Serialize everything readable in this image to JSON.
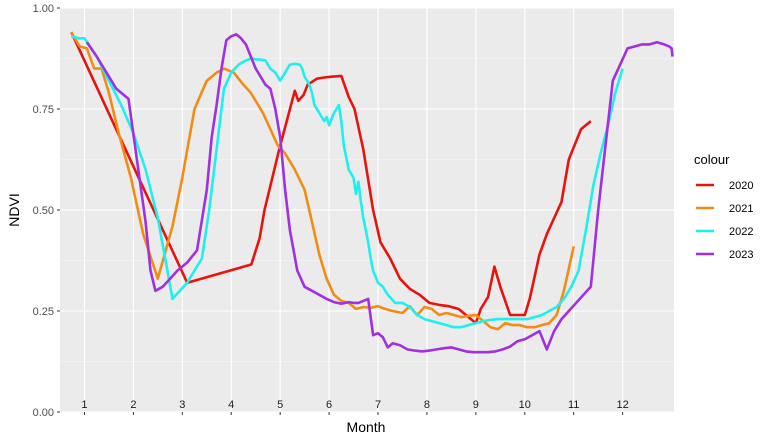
{
  "chart_data": {
    "type": "line",
    "xlabel": "Month",
    "ylabel": "NDVI",
    "xlim": [
      0,
      12.55
    ],
    "ylim": [
      0,
      1
    ],
    "grid": true,
    "legend_title": "colour",
    "legend_position": "right",
    "y_ticks": [
      0,
      0.25,
      0.5,
      0.75,
      1
    ],
    "y_tick_labels": [
      "0.00",
      "0.25",
      "0.50",
      "0.75",
      "1.00"
    ],
    "x_ticks": [
      0.5,
      1.5,
      2.5,
      3.5,
      4.5,
      5.5,
      6.5,
      7.5,
      8.5,
      9.5,
      10.5,
      11.5
    ],
    "month_labels": [
      {
        "x": 0.5,
        "label": "1"
      },
      {
        "x": 1.5,
        "label": "2"
      },
      {
        "x": 2.5,
        "label": "3"
      },
      {
        "x": 3.5,
        "label": "4"
      },
      {
        "x": 4.5,
        "label": "5"
      },
      {
        "x": 5.5,
        "label": "6"
      },
      {
        "x": 6.5,
        "label": "7"
      },
      {
        "x": 7.5,
        "label": "8"
      },
      {
        "x": 8.5,
        "label": "9"
      },
      {
        "x": 9.5,
        "label": "10"
      },
      {
        "x": 10.5,
        "label": "11"
      },
      {
        "x": 11.5,
        "label": "12"
      }
    ],
    "series": [
      {
        "name": "2020",
        "color": "#e8130e",
        "x": [
          0.23,
          2.6,
          3.91,
          4.08,
          4.18,
          4.48,
          4.8,
          4.87,
          4.98,
          5.06,
          5.25,
          5.4,
          5.55,
          5.75,
          5.9,
          6.02,
          6.2,
          6.4,
          6.55,
          6.75,
          6.95,
          7.15,
          7.35,
          7.55,
          7.75,
          7.95,
          8.15,
          8.35,
          8.5,
          8.6,
          8.75,
          8.88,
          9.0,
          9.2,
          9.35,
          9.5,
          9.6,
          9.7,
          9.8,
          9.95,
          10.1,
          10.25,
          10.4,
          10.65,
          10.85
        ],
        "y": [
          0.94,
          0.32,
          0.365,
          0.43,
          0.5,
          0.65,
          0.795,
          0.77,
          0.785,
          0.81,
          0.825,
          0.828,
          0.83,
          0.832,
          0.78,
          0.75,
          0.65,
          0.5,
          0.42,
          0.38,
          0.33,
          0.305,
          0.29,
          0.27,
          0.265,
          0.262,
          0.255,
          0.235,
          0.22,
          0.255,
          0.285,
          0.36,
          0.31,
          0.24,
          0.24,
          0.24,
          0.28,
          0.335,
          0.39,
          0.44,
          0.48,
          0.52,
          0.625,
          0.7,
          0.72
        ]
      },
      {
        "name": "2021",
        "color": "#f28c14",
        "x": [
          0.23,
          0.4,
          0.55,
          0.7,
          0.85,
          1.0,
          1.2,
          1.45,
          1.7,
          2.0,
          2.3,
          2.5,
          2.75,
          3.0,
          3.2,
          3.35,
          3.55,
          3.75,
          3.9,
          4.0,
          4.15,
          4.3,
          4.45,
          4.6,
          4.8,
          5.0,
          5.15,
          5.3,
          5.45,
          5.6,
          5.75,
          5.9,
          6.05,
          6.2,
          6.35,
          6.5,
          6.65,
          6.8,
          7.0,
          7.15,
          7.3,
          7.45,
          7.6,
          7.75,
          7.9,
          8.05,
          8.2,
          8.35,
          8.5,
          8.65,
          8.8,
          8.95,
          9.1,
          9.25,
          9.4,
          9.55,
          9.7,
          9.85,
          10.0,
          10.15,
          10.3,
          10.5
        ],
        "y": [
          0.94,
          0.905,
          0.9,
          0.85,
          0.85,
          0.79,
          0.69,
          0.58,
          0.44,
          0.33,
          0.46,
          0.58,
          0.75,
          0.82,
          0.84,
          0.85,
          0.84,
          0.81,
          0.79,
          0.77,
          0.74,
          0.7,
          0.66,
          0.64,
          0.6,
          0.55,
          0.47,
          0.39,
          0.33,
          0.29,
          0.275,
          0.27,
          0.255,
          0.26,
          0.258,
          0.262,
          0.255,
          0.25,
          0.245,
          0.262,
          0.24,
          0.26,
          0.255,
          0.24,
          0.245,
          0.24,
          0.235,
          0.238,
          0.24,
          0.225,
          0.21,
          0.205,
          0.22,
          0.215,
          0.215,
          0.21,
          0.21,
          0.215,
          0.22,
          0.24,
          0.3,
          0.41
        ]
      },
      {
        "name": "2022",
        "color": "#1ef0f0",
        "x": [
          0.23,
          0.38,
          0.5,
          0.75,
          1.0,
          1.25,
          1.5,
          1.75,
          2.0,
          2.15,
          2.3,
          2.45,
          2.6,
          2.75,
          2.9,
          3.05,
          3.2,
          3.35,
          3.5,
          3.65,
          3.8,
          3.9,
          4.0,
          4.1,
          4.2,
          4.25,
          4.3,
          4.4,
          4.5,
          4.6,
          4.7,
          4.8,
          4.9,
          4.95,
          5.0,
          5.05,
          5.1,
          5.15,
          5.2,
          5.25,
          5.3,
          5.4,
          5.45,
          5.5,
          5.6,
          5.7,
          5.75,
          5.8,
          5.9,
          6.0,
          6.05,
          6.1,
          6.15,
          6.2,
          6.25,
          6.3,
          6.35,
          6.4,
          6.5,
          6.6,
          6.7,
          6.85,
          7.0,
          7.15,
          7.3,
          7.45,
          7.6,
          7.75,
          7.9,
          8.05,
          8.2,
          8.35,
          8.5,
          8.65,
          8.8,
          8.95,
          9.1,
          9.25,
          9.4,
          9.55,
          9.7,
          9.85,
          10.0,
          10.15,
          10.3,
          10.45,
          10.6,
          10.75,
          10.9,
          11.05,
          11.2,
          11.35,
          11.5
        ],
        "y": [
          0.93,
          0.925,
          0.925,
          0.88,
          0.82,
          0.76,
          0.69,
          0.6,
          0.48,
          0.38,
          0.28,
          0.3,
          0.32,
          0.35,
          0.38,
          0.5,
          0.65,
          0.8,
          0.84,
          0.86,
          0.87,
          0.875,
          0.873,
          0.872,
          0.87,
          0.86,
          0.85,
          0.84,
          0.82,
          0.84,
          0.86,
          0.862,
          0.86,
          0.85,
          0.83,
          0.82,
          0.81,
          0.79,
          0.76,
          0.75,
          0.74,
          0.72,
          0.73,
          0.71,
          0.74,
          0.76,
          0.72,
          0.66,
          0.6,
          0.58,
          0.54,
          0.57,
          0.52,
          0.48,
          0.45,
          0.42,
          0.38,
          0.35,
          0.32,
          0.31,
          0.29,
          0.27,
          0.27,
          0.26,
          0.24,
          0.23,
          0.225,
          0.22,
          0.215,
          0.21,
          0.21,
          0.215,
          0.22,
          0.225,
          0.228,
          0.23,
          0.23,
          0.23,
          0.23,
          0.23,
          0.235,
          0.24,
          0.25,
          0.26,
          0.28,
          0.31,
          0.35,
          0.45,
          0.56,
          0.64,
          0.71,
          0.79,
          0.85
        ]
      },
      {
        "name": "2023",
        "color": "#a030e0",
        "x": [
          0.55,
          0.75,
          0.95,
          1.15,
          1.4,
          1.6,
          1.75,
          1.85,
          1.95,
          2.1,
          2.25,
          2.4,
          2.6,
          2.8,
          3.0,
          3.1,
          3.2,
          3.3,
          3.4,
          3.5,
          3.6,
          3.7,
          3.8,
          3.9,
          4.0,
          4.1,
          4.2,
          4.3,
          4.4,
          4.5,
          4.6,
          4.7,
          4.85,
          5.0,
          5.15,
          5.3,
          5.45,
          5.6,
          5.75,
          5.9,
          6.0,
          6.1,
          6.2,
          6.3,
          6.4,
          6.5,
          6.6,
          6.7,
          6.8,
          6.95,
          7.1,
          7.25,
          7.4,
          7.55,
          7.7,
          7.85,
          8.0,
          8.15,
          8.3,
          8.45,
          8.6,
          8.75,
          8.9,
          9.05,
          9.2,
          9.35,
          9.5,
          9.65,
          9.8,
          9.95,
          10.1,
          10.25,
          10.4,
          10.55,
          10.7,
          10.85,
          11.0,
          11.15,
          11.3,
          11.45,
          11.6,
          11.75,
          11.9,
          12.05,
          12.2,
          12.35,
          12.45,
          12.5,
          12.52
        ],
        "y": [
          0.915,
          0.88,
          0.84,
          0.8,
          0.775,
          0.6,
          0.47,
          0.35,
          0.3,
          0.31,
          0.33,
          0.35,
          0.37,
          0.4,
          0.55,
          0.68,
          0.76,
          0.85,
          0.92,
          0.93,
          0.935,
          0.925,
          0.91,
          0.88,
          0.85,
          0.83,
          0.81,
          0.8,
          0.75,
          0.68,
          0.55,
          0.45,
          0.35,
          0.31,
          0.3,
          0.29,
          0.28,
          0.272,
          0.268,
          0.272,
          0.27,
          0.27,
          0.275,
          0.28,
          0.19,
          0.195,
          0.185,
          0.16,
          0.17,
          0.165,
          0.155,
          0.152,
          0.15,
          0.152,
          0.155,
          0.158,
          0.16,
          0.155,
          0.15,
          0.148,
          0.148,
          0.148,
          0.15,
          0.155,
          0.162,
          0.175,
          0.18,
          0.19,
          0.2,
          0.155,
          0.2,
          0.23,
          0.25,
          0.27,
          0.29,
          0.31,
          0.5,
          0.66,
          0.82,
          0.86,
          0.9,
          0.905,
          0.91,
          0.91,
          0.915,
          0.91,
          0.905,
          0.9,
          0.88
        ]
      }
    ]
  }
}
